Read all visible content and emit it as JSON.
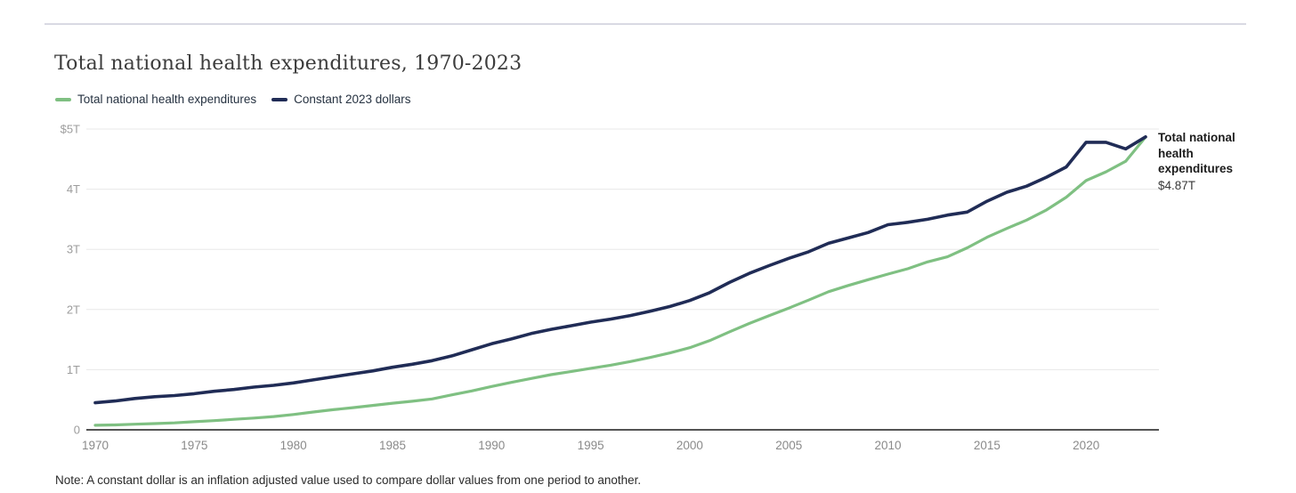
{
  "header": {
    "title": "Total national health expenditures, 1970-2023"
  },
  "legend": [
    {
      "label": "Total national health expenditures",
      "color": "#7fc082"
    },
    {
      "label": "Constant 2023 dollars",
      "color": "#202c56"
    }
  ],
  "annotation": {
    "label": "Total national health expenditures",
    "value": "$4.87T"
  },
  "note": "Note: A constant dollar is an inflation adjusted value used to compare dollar values from one period to another.",
  "colors": {
    "grid": "#e8e8e8",
    "axis": "#1a1a1a",
    "series_green": "#7fc082",
    "series_navy": "#202c56"
  },
  "chart_data": {
    "type": "line",
    "title": "Total national health expenditures, 1970-2023",
    "x": [
      1970,
      1971,
      1972,
      1973,
      1974,
      1975,
      1976,
      1977,
      1978,
      1979,
      1980,
      1981,
      1982,
      1983,
      1984,
      1985,
      1986,
      1987,
      1988,
      1989,
      1990,
      1991,
      1992,
      1993,
      1994,
      1995,
      1996,
      1997,
      1998,
      1999,
      2000,
      2001,
      2002,
      2003,
      2004,
      2005,
      2006,
      2007,
      2008,
      2009,
      2010,
      2011,
      2012,
      2013,
      2014,
      2015,
      2016,
      2017,
      2018,
      2019,
      2020,
      2021,
      2022,
      2023
    ],
    "series": [
      {
        "name": "Total national health expenditures",
        "color": "#7fc082",
        "unit": "trillion USD",
        "values": [
          0.075,
          0.082,
          0.093,
          0.103,
          0.116,
          0.134,
          0.153,
          0.174,
          0.195,
          0.221,
          0.255,
          0.296,
          0.334,
          0.368,
          0.405,
          0.443,
          0.475,
          0.513,
          0.582,
          0.647,
          0.721,
          0.788,
          0.854,
          0.917,
          0.967,
          1.022,
          1.074,
          1.135,
          1.202,
          1.278,
          1.365,
          1.482,
          1.629,
          1.768,
          1.897,
          2.024,
          2.157,
          2.296,
          2.399,
          2.495,
          2.589,
          2.677,
          2.791,
          2.876,
          3.025,
          3.201,
          3.348,
          3.487,
          3.656,
          3.867,
          4.144,
          4.289,
          4.465,
          4.867
        ]
      },
      {
        "name": "Constant 2023 dollars",
        "color": "#202c56",
        "unit": "trillion USD",
        "values": [
          0.45,
          0.48,
          0.52,
          0.55,
          0.57,
          0.6,
          0.64,
          0.67,
          0.71,
          0.74,
          0.78,
          0.83,
          0.88,
          0.93,
          0.98,
          1.04,
          1.09,
          1.15,
          1.23,
          1.33,
          1.43,
          1.51,
          1.6,
          1.67,
          1.73,
          1.79,
          1.84,
          1.9,
          1.97,
          2.05,
          2.15,
          2.28,
          2.45,
          2.6,
          2.73,
          2.85,
          2.96,
          3.1,
          3.19,
          3.28,
          3.41,
          3.45,
          3.5,
          3.57,
          3.62,
          3.8,
          3.95,
          4.05,
          4.2,
          4.37,
          4.78,
          4.78,
          4.67,
          4.87
        ]
      }
    ],
    "xlabel": "",
    "ylabel": "",
    "ylim": [
      0,
      5
    ],
    "yticks": [
      {
        "value": 5,
        "label": "$5T"
      },
      {
        "value": 4,
        "label": "4T"
      },
      {
        "value": 3,
        "label": "3T"
      },
      {
        "value": 2,
        "label": "2T"
      },
      {
        "value": 1,
        "label": "1T"
      },
      {
        "value": 0,
        "label": "0"
      }
    ],
    "xticks": [
      1970,
      1975,
      1980,
      1985,
      1990,
      1995,
      2000,
      2005,
      2010,
      2015,
      2020
    ],
    "grid": "horizontal",
    "legend_position": "top-left",
    "end_label": {
      "series": "Total national health expenditures",
      "value_label": "$4.87T"
    }
  }
}
